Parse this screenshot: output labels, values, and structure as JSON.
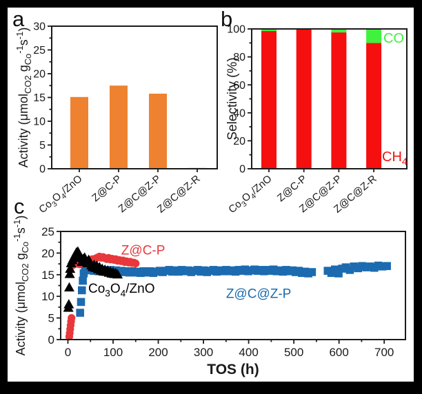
{
  "figure": {
    "background": "#ffffff",
    "border_color": "#000000",
    "axis_color": "#1a1a1a"
  },
  "chart_data": [
    {
      "id": "a",
      "panel_letter": "a",
      "type": "bar",
      "bar_color": "#EE8230",
      "ylabel_rich": [
        {
          "t": "Activity (μmol"
        },
        {
          "t": "CO2",
          "sub": true
        },
        {
          "t": " g"
        },
        {
          "t": "Co",
          "sub": true
        },
        {
          "t": "-1",
          "sup": true
        },
        {
          "t": "s"
        },
        {
          "t": "-1",
          "sup": true
        },
        {
          "t": ")"
        }
      ],
      "ylim": [
        0,
        30
      ],
      "ytick_step": 5,
      "ytick_minor_step": 2.5,
      "yticks": [
        0,
        5,
        10,
        15,
        20,
        25,
        30
      ],
      "categories_rich": [
        [
          {
            "t": "Co"
          },
          {
            "t": "3",
            "sub": true
          },
          {
            "t": "O"
          },
          {
            "t": "4",
            "sub": true
          },
          {
            "t": "/ZnO"
          }
        ],
        [
          {
            "t": "Z@C-P"
          }
        ],
        [
          {
            "t": "Z@C@Z-P"
          }
        ],
        [
          {
            "t": "Z@C@Z-R"
          }
        ]
      ],
      "values": [
        15.1,
        17.5,
        15.8,
        0.15
      ]
    },
    {
      "id": "b",
      "panel_letter": "b",
      "type": "stacked-bar",
      "ylabel_rich": [
        {
          "t": "Selectivity (%)"
        }
      ],
      "ylim": [
        0,
        100
      ],
      "ytick_step": 20,
      "ytick_minor_step": 10,
      "yticks": [
        0,
        20,
        40,
        60,
        80,
        100
      ],
      "categories_rich": [
        [
          {
            "t": "Co"
          },
          {
            "t": "3",
            "sub": true
          },
          {
            "t": "O"
          },
          {
            "t": "4",
            "sub": true
          },
          {
            "t": "/ZnO"
          }
        ],
        [
          {
            "t": "Z@C-P"
          }
        ],
        [
          {
            "t": "Z@C@Z-P"
          }
        ],
        [
          {
            "t": "Z@C@Z-R"
          }
        ]
      ],
      "series": [
        {
          "name_rich": [
            {
              "t": "CH"
            },
            {
              "t": "4",
              "sub": true
            }
          ],
          "color": "#F50F0F",
          "values": [
            98.5,
            99.7,
            97.5,
            90
          ]
        },
        {
          "name_rich": [
            {
              "t": "CO"
            }
          ],
          "color": "#3EF23E",
          "values": [
            1.5,
            0.3,
            2.5,
            10
          ]
        }
      ]
    },
    {
      "id": "c",
      "panel_letter": "c",
      "type": "scatter",
      "xlabel": "TOS (h)",
      "ylabel_rich": [
        {
          "t": "Activity (μmol"
        },
        {
          "t": "CO2",
          "sub": true
        },
        {
          "t": " g"
        },
        {
          "t": "Co",
          "sub": true
        },
        {
          "t": "-1",
          "sup": true
        },
        {
          "t": "s"
        },
        {
          "t": "-1",
          "sup": true
        },
        {
          "t": ")"
        }
      ],
      "xlim": [
        -16,
        747
      ],
      "ylim": [
        0,
        25
      ],
      "xticks": [
        0,
        100,
        200,
        300,
        400,
        500,
        600,
        700
      ],
      "xtick_minor_step": 50,
      "ytick_step": 5,
      "ytick_minor_step": 2.5,
      "yticks": [
        0,
        5,
        10,
        15,
        20,
        25
      ],
      "series": [
        {
          "name_rich": [
            {
              "t": "Z@C@Z-P"
            }
          ],
          "marker": "square",
          "color": "#1C6BB0",
          "label_xy": [
            350,
            9.6
          ],
          "points": [
            [
              27,
              6.2
            ],
            [
              29,
              8.7
            ],
            [
              31,
              11.4
            ],
            [
              33,
              13.6
            ],
            [
              35,
              15.3
            ],
            [
              38,
              16.0
            ],
            [
              42,
              16.3
            ],
            [
              47,
              16.1
            ],
            [
              52,
              16.4
            ],
            [
              57,
              15.9
            ],
            [
              62,
              16.2
            ],
            [
              67,
              15.8
            ],
            [
              72,
              16.1
            ],
            [
              77,
              15.7
            ],
            [
              82,
              16.0
            ],
            [
              88,
              15.8
            ],
            [
              94,
              16.1
            ],
            [
              100,
              15.7
            ],
            [
              106,
              16.0
            ],
            [
              112,
              15.6
            ],
            [
              118,
              15.9
            ],
            [
              124,
              15.6
            ],
            [
              130,
              15.8
            ],
            [
              136,
              15.5
            ],
            [
              142,
              15.8
            ],
            [
              148,
              15.5
            ],
            [
              154,
              15.7
            ],
            [
              161,
              15.4
            ],
            [
              168,
              15.8
            ],
            [
              175,
              15.5
            ],
            [
              182,
              15.8
            ],
            [
              189,
              15.4
            ],
            [
              196,
              15.7
            ],
            [
              203,
              15.9
            ],
            [
              210,
              15.6
            ],
            [
              217,
              15.9
            ],
            [
              224,
              16.1
            ],
            [
              231,
              15.7
            ],
            [
              238,
              16.0
            ],
            [
              245,
              15.7
            ],
            [
              252,
              16.1
            ],
            [
              259,
              15.8
            ],
            [
              266,
              16.0
            ],
            [
              273,
              15.6
            ],
            [
              280,
              15.9
            ],
            [
              287,
              16.1
            ],
            [
              294,
              15.7
            ],
            [
              301,
              16.0
            ],
            [
              308,
              15.6
            ],
            [
              315,
              15.9
            ],
            [
              322,
              16.1
            ],
            [
              329,
              15.7
            ],
            [
              336,
              16.0
            ],
            [
              343,
              15.8
            ],
            [
              350,
              16.1
            ],
            [
              357,
              15.8
            ],
            [
              364,
              16.0
            ],
            [
              371,
              15.7
            ],
            [
              378,
              16.1
            ],
            [
              385,
              15.9
            ],
            [
              392,
              16.2
            ],
            [
              399,
              15.8
            ],
            [
              406,
              16.0
            ],
            [
              413,
              16.2
            ],
            [
              420,
              15.9
            ],
            [
              427,
              16.1
            ],
            [
              434,
              15.8
            ],
            [
              441,
              16.1
            ],
            [
              448,
              15.9
            ],
            [
              455,
              16.2
            ],
            [
              462,
              15.8
            ],
            [
              469,
              16.0
            ],
            [
              476,
              15.7
            ],
            [
              483,
              16.1
            ],
            [
              490,
              15.8
            ],
            [
              497,
              16.0
            ],
            [
              504,
              15.6
            ],
            [
              511,
              15.9
            ],
            [
              518,
              15.4
            ],
            [
              525,
              15.7
            ],
            [
              532,
              15.3
            ],
            [
              540,
              15.6
            ],
            [
              575,
              15.9
            ],
            [
              583,
              15.4
            ],
            [
              591,
              16.2
            ],
            [
              599,
              15.3
            ],
            [
              607,
              16.4
            ],
            [
              615,
              16.7
            ],
            [
              624,
              16.1
            ],
            [
              633,
              16.9
            ],
            [
              642,
              16.5
            ],
            [
              651,
              17.0
            ],
            [
              660,
              16.7
            ],
            [
              669,
              16.9
            ],
            [
              678,
              16.6
            ],
            [
              687,
              17.1
            ],
            [
              696,
              16.9
            ],
            [
              706,
              17.0
            ]
          ]
        },
        {
          "name_rich": [
            {
              "t": "Z@C-P"
            }
          ],
          "marker": "circle",
          "color": "#E8383C",
          "label_xy": [
            118,
            19.7
          ],
          "points": [
            [
              3,
              0.7
            ],
            [
              4,
              1.5
            ],
            [
              5,
              2.4
            ],
            [
              6,
              3.3
            ],
            [
              7,
              4.2
            ],
            [
              8,
              5.0
            ],
            [
              11,
              17.2
            ],
            [
              14,
              17.6
            ],
            [
              17,
              17.9
            ],
            [
              20,
              17.5
            ],
            [
              23,
              17.8
            ],
            [
              26,
              17.4
            ],
            [
              29,
              17.7
            ],
            [
              32,
              17.5
            ],
            [
              35,
              17.9
            ],
            [
              38,
              18.1
            ],
            [
              41,
              17.8
            ],
            [
              44,
              18.2
            ],
            [
              47,
              18.0
            ],
            [
              50,
              18.4
            ],
            [
              54,
              18.6
            ],
            [
              58,
              18.3
            ],
            [
              62,
              18.8
            ],
            [
              66,
              19.0
            ],
            [
              70,
              19.2
            ],
            [
              74,
              18.9
            ],
            [
              78,
              19.1
            ],
            [
              82,
              18.8
            ],
            [
              86,
              18.6
            ],
            [
              90,
              18.9
            ],
            [
              94,
              18.5
            ],
            [
              98,
              18.7
            ],
            [
              102,
              18.4
            ],
            [
              106,
              18.6
            ],
            [
              110,
              18.2
            ],
            [
              114,
              18.4
            ],
            [
              118,
              18.1
            ],
            [
              122,
              18.3
            ],
            [
              126,
              17.9
            ],
            [
              130,
              18.1
            ],
            [
              134,
              17.8
            ],
            [
              138,
              18.0
            ],
            [
              142,
              17.7
            ],
            [
              146,
              17.8
            ],
            [
              150,
              17.6
            ]
          ]
        },
        {
          "name_rich": [
            {
              "t": "Co"
            },
            {
              "t": "3",
              "sub": true
            },
            {
              "t": "O"
            },
            {
              "t": "4",
              "sub": true
            },
            {
              "t": "/ZnO"
            }
          ],
          "marker": "triangle",
          "color": "#000000",
          "label_xy": [
            45,
            10.8
          ],
          "points": [
            [
              1,
              7.3
            ],
            [
              2,
              8.1
            ],
            [
              3,
              12.0
            ],
            [
              4,
              15.1
            ],
            [
              5,
              16.3
            ],
            [
              7,
              17.6
            ],
            [
              10,
              18.3
            ],
            [
              13,
              18.9
            ],
            [
              16,
              19.5
            ],
            [
              19,
              20.1
            ],
            [
              22,
              20.3
            ],
            [
              25,
              19.6
            ],
            [
              28,
              18.8
            ],
            [
              31,
              17.9
            ],
            [
              34,
              18.6
            ],
            [
              37,
              18.9
            ],
            [
              40,
              18.2
            ],
            [
              43,
              17.6
            ],
            [
              46,
              18.4
            ],
            [
              49,
              17.8
            ],
            [
              52,
              17.1
            ],
            [
              55,
              16.7
            ],
            [
              58,
              17.2
            ],
            [
              61,
              16.5
            ],
            [
              64,
              17.0
            ],
            [
              67,
              16.2
            ],
            [
              70,
              16.7
            ],
            [
              73,
              15.9
            ],
            [
              76,
              16.3
            ],
            [
              79,
              15.7
            ],
            [
              82,
              16.1
            ],
            [
              85,
              15.6
            ],
            [
              88,
              15.9
            ],
            [
              91,
              15.4
            ],
            [
              94,
              15.7
            ],
            [
              97,
              15.2
            ],
            [
              100,
              15.5
            ],
            [
              103,
              15.1
            ],
            [
              106,
              15.3
            ],
            [
              110,
              15.0
            ]
          ]
        }
      ]
    }
  ]
}
